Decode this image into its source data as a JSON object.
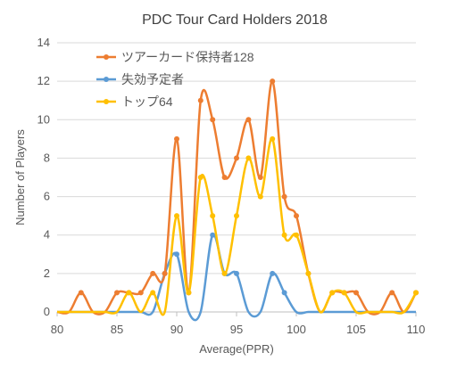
{
  "chart_data": {
    "type": "line",
    "title": "PDC Tour Card Holders 2018",
    "xlabel": "Average(PPR)",
    "ylabel": "Number of Players",
    "xlim": [
      80,
      110
    ],
    "ylim": [
      0,
      14
    ],
    "x_ticks": [
      80,
      85,
      90,
      95,
      100,
      105,
      110
    ],
    "y_ticks": [
      0,
      2,
      4,
      6,
      8,
      10,
      12,
      14
    ],
    "grid": "horizontal",
    "legend_position": "top-left",
    "x": [
      80,
      81,
      82,
      83,
      84,
      85,
      86,
      87,
      88,
      89,
      90,
      91,
      92,
      93,
      94,
      95,
      96,
      97,
      98,
      99,
      100,
      101,
      102,
      103,
      104,
      105,
      106,
      107,
      108,
      109,
      110
    ],
    "series": [
      {
        "name": "ツアーカード保持者128",
        "color": "#ED7D31",
        "values": [
          0,
          0,
          1,
          0,
          0,
          1,
          1,
          1,
          2,
          2,
          9,
          1,
          11,
          10,
          7,
          8,
          10,
          7,
          12,
          6,
          5,
          2,
          0,
          1,
          1,
          1,
          0,
          0,
          1,
          0,
          1
        ]
      },
      {
        "name": "失効予定者",
        "color": "#5B9BD5",
        "values": [
          0,
          0,
          0,
          0,
          0,
          0,
          0,
          0,
          0,
          2,
          3,
          0,
          0,
          4,
          2,
          2,
          0,
          0,
          2,
          1,
          0,
          0,
          0,
          0,
          0,
          0,
          0,
          0,
          0,
          0,
          0
        ]
      },
      {
        "name": "トップ64",
        "color": "#FFC000",
        "values": [
          0,
          0,
          0,
          0,
          0,
          0,
          1,
          0,
          1,
          0,
          5,
          1,
          7,
          5,
          2,
          5,
          8,
          6,
          9,
          4,
          4,
          2,
          0,
          1,
          1,
          0,
          0,
          0,
          0,
          0,
          1
        ]
      }
    ]
  }
}
